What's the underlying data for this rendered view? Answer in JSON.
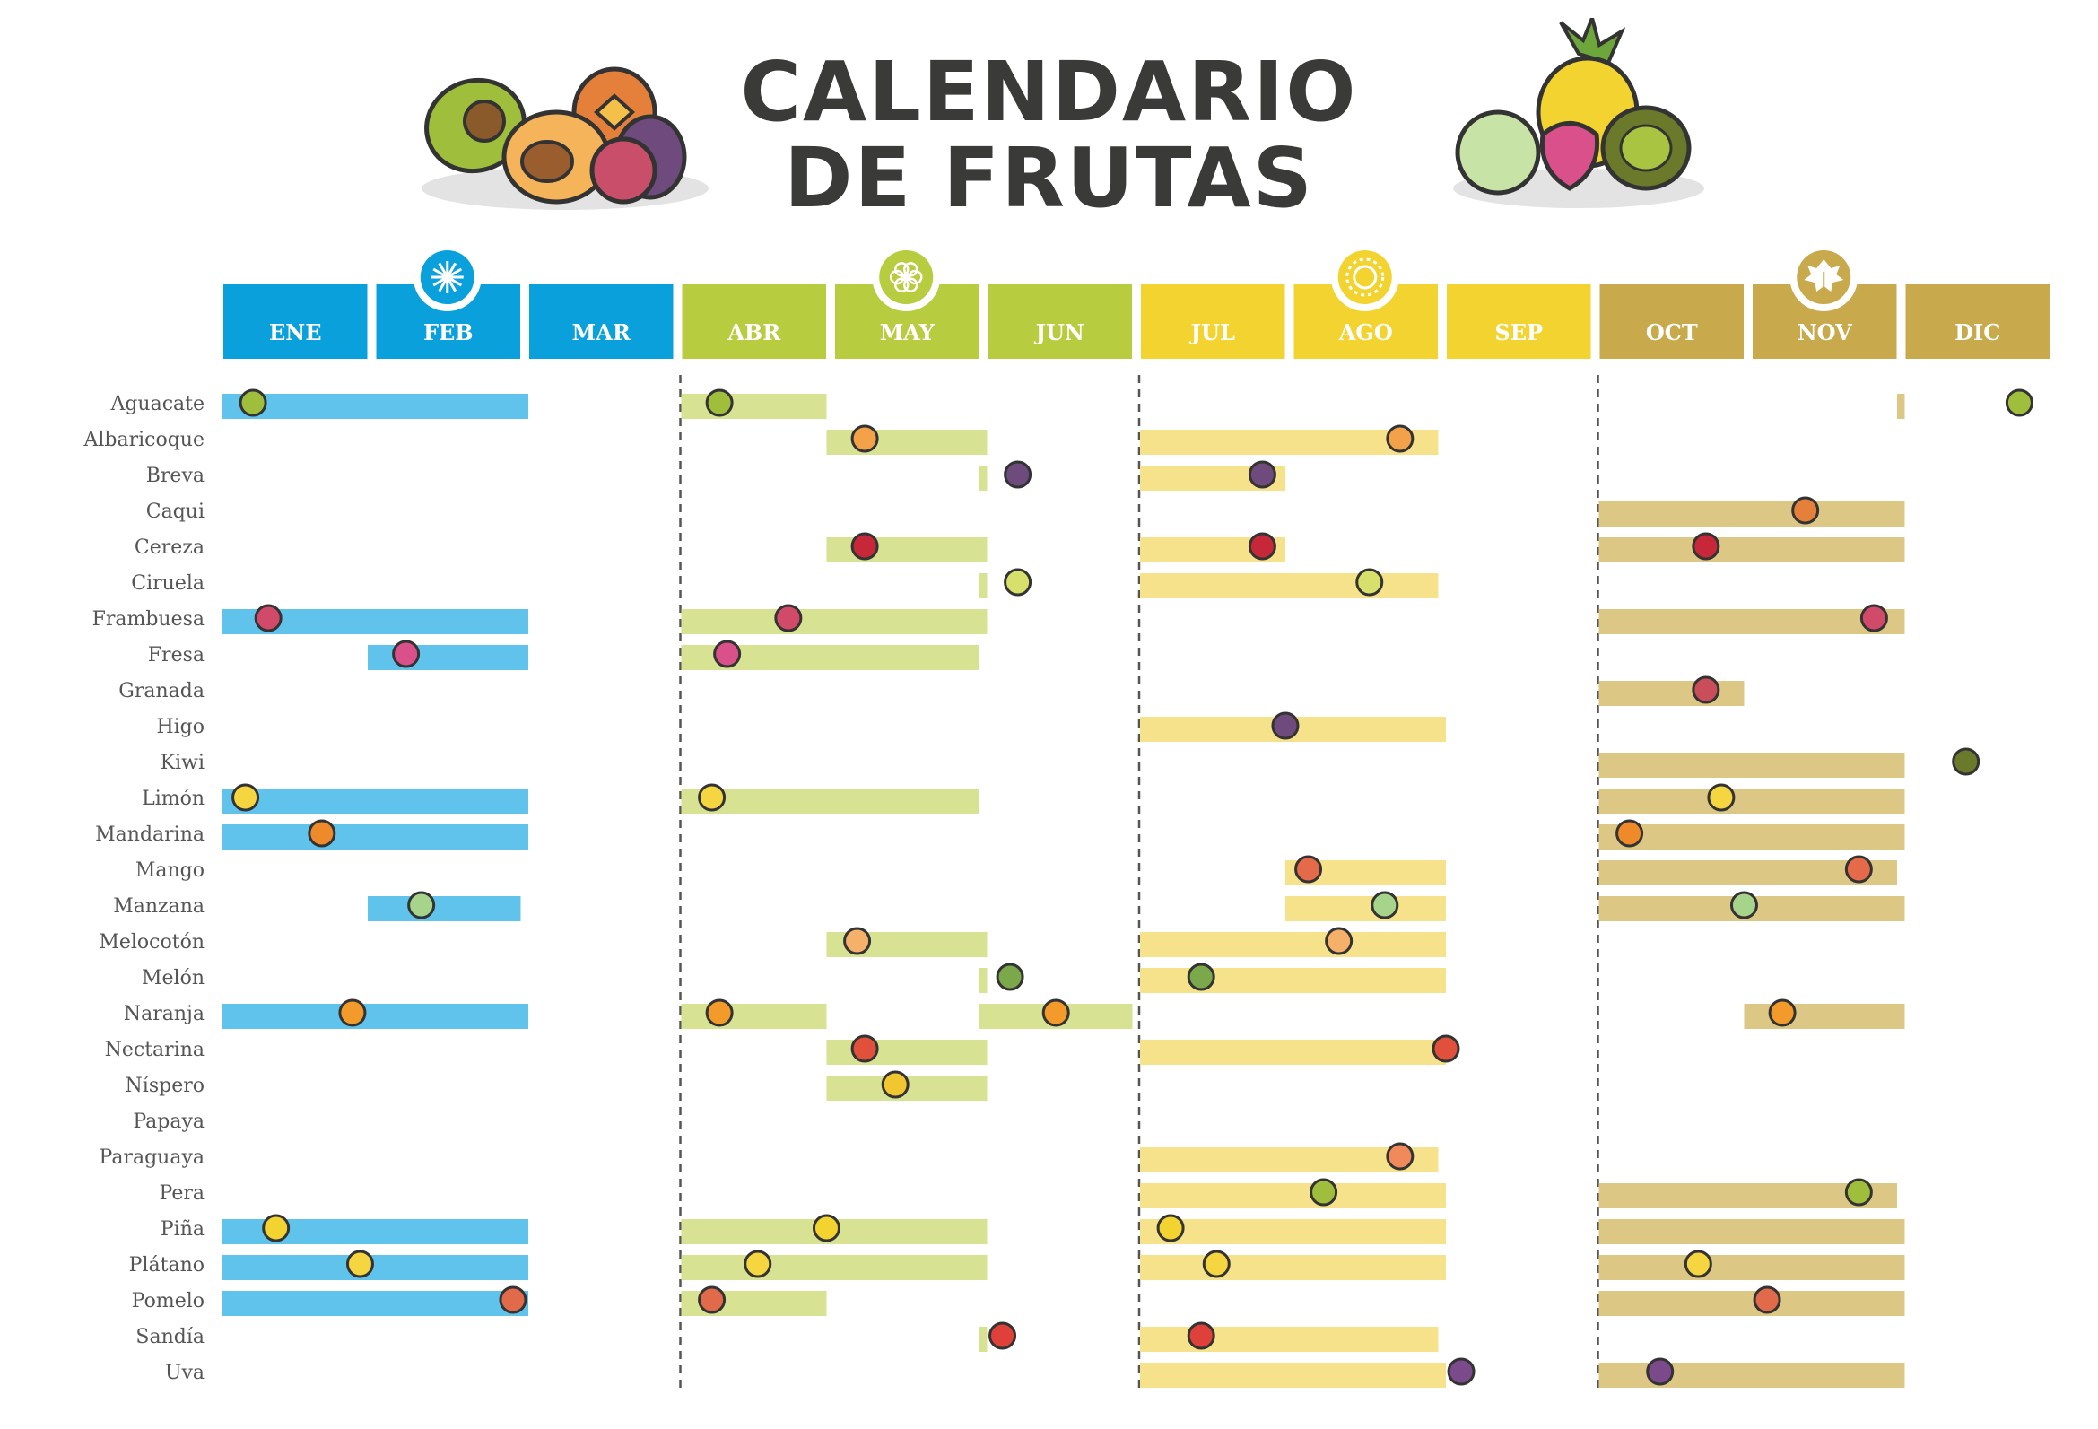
{
  "title_line1": "CALENDARIO",
  "title_line2": "DE FRUTAS",
  "chart_data": {
    "type": "timeline",
    "months": [
      "ENE",
      "FEB",
      "MAR",
      "ABR",
      "MAY",
      "JUN",
      "JUL",
      "AGO",
      "SEP",
      "OCT",
      "NOV",
      "DIC"
    ],
    "seasons": [
      {
        "name": "winter",
        "icon": "snowflake-icon",
        "months": [
          1,
          3
        ],
        "color": "#0aa0dc",
        "bar_color": "#5fc3ec"
      },
      {
        "name": "spring",
        "icon": "flower-icon",
        "months": [
          4,
          6
        ],
        "color": "#b7cc3f",
        "bar_color": "#d7e293"
      },
      {
        "name": "summer",
        "icon": "sun-icon",
        "months": [
          7,
          9
        ],
        "color": "#f2d330",
        "bar_color": "#f6e28a"
      },
      {
        "name": "autumn",
        "icon": "leaf-icon",
        "months": [
          10,
          12
        ],
        "color": "#c8a94b",
        "bar_color": "#dcc785"
      }
    ],
    "fruits": [
      {
        "name": "Aguacate",
        "icon": "avocado-icon",
        "ranges": [
          [
            1,
            3
          ],
          [
            4,
            4.95
          ],
          [
            11.95,
            12
          ]
        ],
        "icon_months": [
          1.2,
          4.25,
          12.75
        ]
      },
      {
        "name": "Albaricoque",
        "icon": "apricot-icon",
        "ranges": [
          [
            4.95,
            6
          ],
          [
            7,
            8.95
          ]
        ],
        "icon_months": [
          5.2,
          8.7
        ]
      },
      {
        "name": "Breva",
        "icon": "fig-icon",
        "ranges": [
          [
            5.95,
            6
          ],
          [
            7,
            7.95
          ]
        ],
        "icon_months": [
          6.2,
          7.8
        ]
      },
      {
        "name": "Caqui",
        "icon": "persimmon-icon",
        "ranges": [
          [
            10,
            12
          ]
        ],
        "icon_months": [
          11.35
        ]
      },
      {
        "name": "Cereza",
        "icon": "cherry-icon",
        "ranges": [
          [
            4.95,
            6
          ],
          [
            7,
            7.95
          ],
          [
            10,
            12
          ]
        ],
        "icon_months": [
          5.2,
          7.8,
          10.7
        ]
      },
      {
        "name": "Ciruela",
        "icon": "plum-icon",
        "ranges": [
          [
            5.95,
            6
          ],
          [
            7,
            8.95
          ]
        ],
        "icon_months": [
          6.2,
          8.5
        ]
      },
      {
        "name": "Frambuesa",
        "icon": "raspberry-icon",
        "ranges": [
          [
            1,
            3
          ],
          [
            4,
            6
          ],
          [
            10,
            12
          ]
        ],
        "icon_months": [
          1.3,
          4.7,
          11.8
        ]
      },
      {
        "name": "Fresa",
        "icon": "strawberry-icon",
        "ranges": [
          [
            1.95,
            3
          ],
          [
            4,
            5.95
          ]
        ],
        "icon_months": [
          2.2,
          4.3
        ]
      },
      {
        "name": "Granada",
        "icon": "pomegranate-icon",
        "ranges": [
          [
            10,
            10.95
          ]
        ],
        "icon_months": [
          10.7
        ]
      },
      {
        "name": "Higo",
        "icon": "fig-icon",
        "ranges": [
          [
            7,
            9
          ]
        ],
        "icon_months": [
          7.95
        ]
      },
      {
        "name": "Kiwi",
        "icon": "kiwi-icon",
        "ranges": [
          [
            10,
            12
          ]
        ],
        "icon_months": [
          12.4
        ]
      },
      {
        "name": "Limón",
        "icon": "lemon-icon",
        "ranges": [
          [
            1,
            3
          ],
          [
            4,
            5.95
          ],
          [
            10,
            12
          ]
        ],
        "icon_months": [
          1.15,
          4.2,
          10.8
        ]
      },
      {
        "name": "Mandarina",
        "icon": "mandarin-icon",
        "ranges": [
          [
            1,
            3
          ],
          [
            10,
            12
          ]
        ],
        "icon_months": [
          1.65,
          10.2
        ]
      },
      {
        "name": "Mango",
        "icon": "mango-icon",
        "ranges": [
          [
            7.95,
            9
          ],
          [
            10,
            11.95
          ]
        ],
        "icon_months": [
          8.1,
          11.7
        ]
      },
      {
        "name": "Manzana",
        "icon": "apple-icon",
        "ranges": [
          [
            1.95,
            2.95
          ],
          [
            7.95,
            9
          ],
          [
            10,
            12
          ]
        ],
        "icon_months": [
          2.3,
          8.6,
          10.95
        ]
      },
      {
        "name": "Melocotón",
        "icon": "peach-icon",
        "ranges": [
          [
            4.95,
            6
          ],
          [
            7,
            9
          ]
        ],
        "icon_months": [
          5.15,
          8.3
        ]
      },
      {
        "name": "Melón",
        "icon": "melon-icon",
        "ranges": [
          [
            5.95,
            6
          ],
          [
            7,
            9
          ]
        ],
        "icon_months": [
          6.15,
          7.4
        ]
      },
      {
        "name": "Naranja",
        "icon": "orange-icon",
        "ranges": [
          [
            1,
            3
          ],
          [
            4,
            4.95
          ],
          [
            5.95,
            6.95
          ],
          [
            10.95,
            12
          ]
        ],
        "icon_months": [
          1.85,
          4.25,
          6.45,
          11.2
        ]
      },
      {
        "name": "Nectarina",
        "icon": "nectarine-icon",
        "ranges": [
          [
            4.95,
            6
          ],
          [
            7,
            9
          ]
        ],
        "icon_months": [
          5.2,
          9.0
        ]
      },
      {
        "name": "Níspero",
        "icon": "loquat-icon",
        "ranges": [
          [
            4.95,
            6
          ]
        ],
        "icon_months": [
          5.4
        ]
      },
      {
        "name": "Papaya",
        "icon": "papaya-icon",
        "ranges": [],
        "icon_months": []
      },
      {
        "name": "Paraguaya",
        "icon": "flat-peach-icon",
        "ranges": [
          [
            7,
            8.95
          ]
        ],
        "icon_months": [
          8.7
        ]
      },
      {
        "name": "Pera",
        "icon": "pear-icon",
        "ranges": [
          [
            7,
            9
          ],
          [
            10,
            11.95
          ]
        ],
        "icon_months": [
          8.2,
          11.7
        ]
      },
      {
        "name": "Piña",
        "icon": "pineapple-icon",
        "ranges": [
          [
            1,
            3
          ],
          [
            4,
            6
          ],
          [
            7,
            9
          ],
          [
            10,
            12
          ]
        ],
        "icon_months": [
          1.35,
          4.95,
          7.2
        ]
      },
      {
        "name": "Plátano",
        "icon": "banana-icon",
        "ranges": [
          [
            1,
            3
          ],
          [
            4,
            6
          ],
          [
            7,
            9
          ],
          [
            10,
            12
          ]
        ],
        "icon_months": [
          1.9,
          4.5,
          7.5,
          10.65
        ]
      },
      {
        "name": "Pomelo",
        "icon": "grapefruit-icon",
        "ranges": [
          [
            1,
            3
          ],
          [
            4,
            4.95
          ],
          [
            10,
            12
          ]
        ],
        "icon_months": [
          2.9,
          4.2,
          11.1
        ]
      },
      {
        "name": "Sandía",
        "icon": "watermelon-icon",
        "ranges": [
          [
            5.95,
            6
          ],
          [
            7,
            8.95
          ]
        ],
        "icon_months": [
          6.1,
          7.4
        ]
      },
      {
        "name": "Uva",
        "icon": "grape-icon",
        "ranges": [
          [
            7,
            9
          ],
          [
            10,
            12
          ]
        ],
        "icon_months": [
          9.1,
          10.4
        ]
      }
    ]
  }
}
